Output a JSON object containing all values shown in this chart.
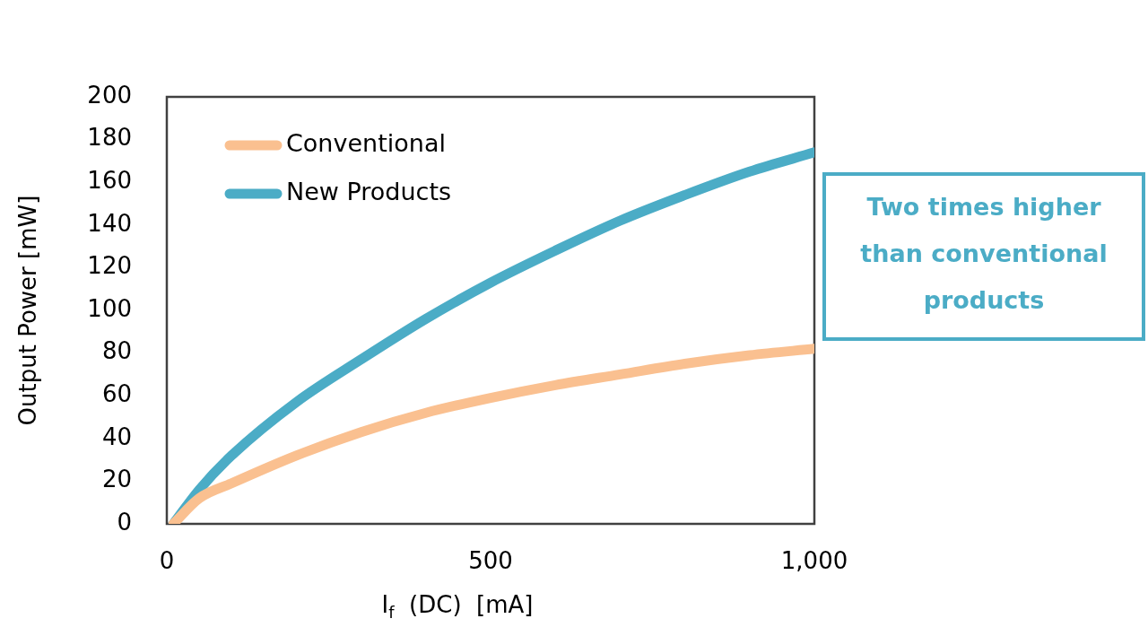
{
  "chart_data": {
    "type": "line",
    "xlabel": "I$_{f}$  (DC)  [mA]",
    "ylabel": "Output Power [mW]",
    "x": [
      10,
      50,
      100,
      200,
      300,
      400,
      500,
      600,
      700,
      800,
      900,
      1000
    ],
    "series": [
      {
        "name": "Conventional",
        "color": "#fac090",
        "values": [
          0,
          12,
          19,
          32,
          43,
          52,
          59,
          65,
          70,
          75,
          79,
          82
        ]
      },
      {
        "name": "New Products",
        "color": "#4bacc6",
        "values": [
          0,
          16,
          32,
          57,
          77,
          96,
          113,
          128,
          142,
          154,
          165,
          174
        ]
      }
    ],
    "xlim": [
      0,
      1000
    ],
    "xticks": [
      0,
      500,
      {
        "value": 1000,
        "label": "1,000"
      }
    ],
    "ylim": [
      0,
      200
    ],
    "yticks": [
      0,
      20,
      40,
      60,
      80,
      100,
      120,
      140,
      160,
      180,
      200
    ],
    "legend": "top left",
    "annotations": [
      "Two times higher than conventional products"
    ]
  }
}
